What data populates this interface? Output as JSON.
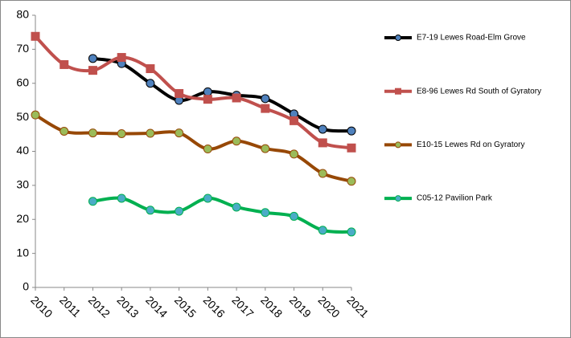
{
  "chart_data": {
    "type": "line",
    "x": [
      2010,
      2011,
      2012,
      2013,
      2014,
      2015,
      2016,
      2017,
      2018,
      2019,
      2020,
      2021
    ],
    "xlim": [
      2010,
      2021
    ],
    "xticks": [
      2010,
      2011,
      2012,
      2013,
      2014,
      2015,
      2016,
      2017,
      2018,
      2019,
      2020,
      2021
    ],
    "ylim": [
      0,
      80
    ],
    "yticks": [
      0,
      10,
      20,
      30,
      40,
      50,
      60,
      70,
      80
    ],
    "grid": false,
    "legend": "right",
    "series": [
      {
        "name": "E7-19 Lewes Road-Elm Grove",
        "color": "#000000",
        "marker": "circle",
        "marker_color": "#4f81bd",
        "values": [
          null,
          null,
          67.3,
          65.8,
          60,
          55,
          57.5,
          56.5,
          55.5,
          51,
          46.5,
          46
        ]
      },
      {
        "name": "E8-96 Lewes Rd South of Gyratory",
        "color": "#c0504d",
        "marker": "square",
        "marker_color": "#c0504d",
        "values": [
          73.8,
          65.5,
          63.8,
          67.6,
          64.3,
          57,
          55.3,
          55.7,
          52.6,
          49,
          42.5,
          41
        ]
      },
      {
        "name": "E10-15 Lewes Rd on Gyratory",
        "color": "#974806",
        "marker": "circle",
        "marker_color": "#9bbb59",
        "values": [
          50.7,
          45.9,
          45.4,
          45.2,
          45.3,
          45.4,
          40.7,
          43,
          40.8,
          39.2,
          33.5,
          31.2
        ]
      },
      {
        "name": "C05-12 Pavilion Park",
        "color": "#00b050",
        "marker": "circle",
        "marker_color": "#4bacc6",
        "values": [
          null,
          null,
          25.3,
          26.2,
          22.7,
          22.4,
          26.2,
          23.6,
          22,
          20.9,
          16.8,
          16.3
        ]
      }
    ]
  }
}
